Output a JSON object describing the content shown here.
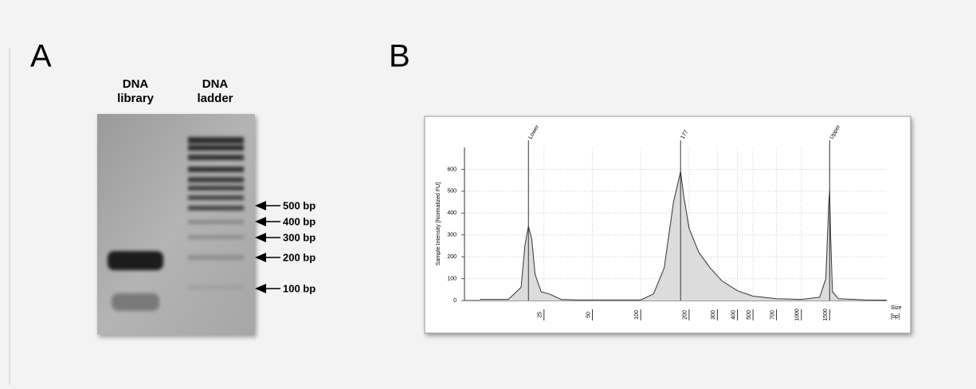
{
  "panel_a": {
    "letter": "A",
    "lanes": [
      "DNA library",
      "DNA ladder"
    ],
    "markers": [
      "500 bp",
      "400 bp",
      "300 bp",
      "200 bp",
      "100 bp"
    ]
  },
  "panel_b": {
    "letter": "B"
  },
  "chart_data": {
    "type": "area",
    "ylabel": "Sample Intensity [Normalized FU]",
    "xlabel": "Size",
    "xunit": "[bp]",
    "x": [
      10,
      15,
      18,
      19,
      20,
      21,
      22,
      24,
      27,
      32,
      40,
      60,
      100,
      120,
      140,
      160,
      177,
      185,
      200,
      230,
      270,
      320,
      400,
      500,
      700,
      1000,
      1300,
      1420,
      1480,
      1500,
      1520,
      1560,
      1700,
      2500,
      3400
    ],
    "values": [
      5,
      5,
      60,
      250,
      340,
      280,
      120,
      40,
      30,
      5,
      3,
      3,
      3,
      30,
      150,
      450,
      590,
      480,
      330,
      220,
      150,
      90,
      45,
      20,
      8,
      5,
      15,
      100,
      450,
      500,
      300,
      40,
      8,
      3,
      2
    ],
    "color": "#dcdcdc",
    "annotations": [
      {
        "text": "Lower",
        "x": 20
      },
      {
        "text": "177",
        "x": 177
      },
      {
        "text": "Upper",
        "x": 1500
      }
    ],
    "log_x": true,
    "xlim": [
      8,
      3400
    ],
    "xticks": [
      25,
      50,
      100,
      200,
      300,
      400,
      500,
      700,
      1000,
      1500
    ],
    "ylim": [
      0,
      700
    ],
    "yticks": [
      0,
      100,
      200,
      300,
      400,
      500,
      600
    ],
    "grid": true
  }
}
